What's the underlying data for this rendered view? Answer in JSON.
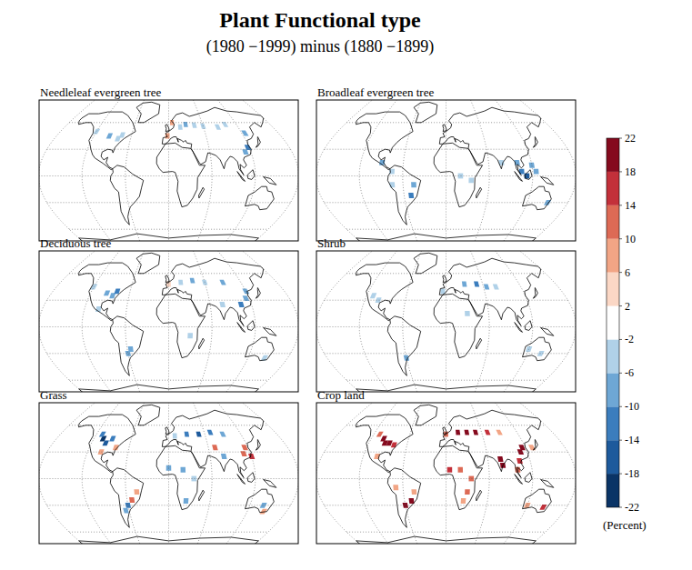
{
  "chart_data": {
    "type": "map",
    "title": "Plant Functional type",
    "subtitle": "(1980 −1999) minus (1880 −1899)",
    "colorbar": {
      "range": [
        -22,
        22
      ],
      "ticks": [
        -22,
        -18,
        -14,
        -10,
        -6,
        -2,
        2,
        6,
        10,
        14,
        18,
        22
      ],
      "colors": [
        "#0a3466",
        "#1d5a9c",
        "#3b7dbd",
        "#6ea7d5",
        "#b0d1e8",
        "#ffffff",
        "#fbd7c5",
        "#f2a585",
        "#dd6a55",
        "#c3303a",
        "#850a1e"
      ],
      "label": "(Percent)"
    },
    "panels": [
      {
        "title": "Needleleaf evergreen tree",
        "cells": [
          {
            "lon": -120,
            "lat": 50,
            "value": -6
          },
          {
            "lon": -95,
            "lat": 45,
            "value": -8
          },
          {
            "lon": -80,
            "lat": 42,
            "value": -6
          },
          {
            "lon": -75,
            "lat": 46,
            "value": -4
          },
          {
            "lon": 20,
            "lat": 55,
            "value": -6
          },
          {
            "lon": 30,
            "lat": 58,
            "value": -8
          },
          {
            "lon": 45,
            "lat": 57,
            "value": -6
          },
          {
            "lon": 60,
            "lat": 56,
            "value": -4
          },
          {
            "lon": 85,
            "lat": 55,
            "value": -6
          },
          {
            "lon": 125,
            "lat": 48,
            "value": -8
          },
          {
            "lon": 118,
            "lat": 32,
            "value": -12
          },
          {
            "lon": 112,
            "lat": 27,
            "value": -10
          },
          {
            "lon": 6,
            "lat": 60,
            "value": 8
          },
          {
            "lon": -2,
            "lat": 45,
            "value": 6
          },
          {
            "lon": 100,
            "lat": 58,
            "value": -4
          }
        ]
      },
      {
        "title": "Broadleaf evergreen tree",
        "cells": [
          {
            "lon": -90,
            "lat": 15,
            "value": -8
          },
          {
            "lon": -75,
            "lat": 5,
            "value": -6
          },
          {
            "lon": -45,
            "lat": -10,
            "value": -10
          },
          {
            "lon": -50,
            "lat": -22,
            "value": -12
          },
          {
            "lon": -75,
            "lat": -10,
            "value": -4
          },
          {
            "lon": 78,
            "lat": 15,
            "value": -6
          },
          {
            "lon": 100,
            "lat": 15,
            "value": -10
          },
          {
            "lon": 105,
            "lat": 5,
            "value": -14
          },
          {
            "lon": 112,
            "lat": 0,
            "value": -16
          },
          {
            "lon": 120,
            "lat": 12,
            "value": -10
          },
          {
            "lon": 125,
            "lat": 5,
            "value": -8
          },
          {
            "lon": 150,
            "lat": -30,
            "value": -10
          },
          {
            "lon": 20,
            "lat": 0,
            "value": -4
          },
          {
            "lon": 35,
            "lat": -5,
            "value": -6
          }
        ]
      },
      {
        "title": "Deciduous tree",
        "cells": [
          {
            "lon": -95,
            "lat": 38,
            "value": -10
          },
          {
            "lon": -85,
            "lat": 35,
            "value": -8
          },
          {
            "lon": -80,
            "lat": 40,
            "value": -12
          },
          {
            "lon": -100,
            "lat": 20,
            "value": -4
          },
          {
            "lon": -60,
            "lat": -30,
            "value": -10
          },
          {
            "lon": -55,
            "lat": -25,
            "value": -8
          },
          {
            "lon": 0,
            "lat": 48,
            "value": 4
          },
          {
            "lon": 20,
            "lat": 50,
            "value": -6
          },
          {
            "lon": 40,
            "lat": 52,
            "value": -8
          },
          {
            "lon": 60,
            "lat": 50,
            "value": -6
          },
          {
            "lon": 90,
            "lat": 50,
            "value": -8
          },
          {
            "lon": 115,
            "lat": 32,
            "value": -10
          },
          {
            "lon": 105,
            "lat": 25,
            "value": -12
          },
          {
            "lon": 120,
            "lat": 40,
            "value": -8
          },
          {
            "lon": 78,
            "lat": 25,
            "value": -6
          },
          {
            "lon": 30,
            "lat": -10,
            "value": -4
          },
          {
            "lon": 145,
            "lat": -35,
            "value": -6
          },
          {
            "lon": -120,
            "lat": 45,
            "value": -4
          }
        ]
      },
      {
        "title": "Shrub",
        "cells": [
          {
            "lon": -110,
            "lat": 35,
            "value": -6
          },
          {
            "lon": -100,
            "lat": 30,
            "value": -4
          },
          {
            "lon": -60,
            "lat": -35,
            "value": -8
          },
          {
            "lon": 30,
            "lat": 48,
            "value": -10
          },
          {
            "lon": 50,
            "lat": 48,
            "value": -12
          },
          {
            "lon": 65,
            "lat": 45,
            "value": -8
          },
          {
            "lon": 80,
            "lat": 45,
            "value": -6
          },
          {
            "lon": 30,
            "lat": 15,
            "value": -4
          },
          {
            "lon": 140,
            "lat": -30,
            "value": -6
          },
          {
            "lon": 120,
            "lat": -25,
            "value": -4
          },
          {
            "lon": -5,
            "lat": 40,
            "value": -6
          }
        ]
      },
      {
        "title": "Grass",
        "cells": [
          {
            "lon": -105,
            "lat": 45,
            "value": -20
          },
          {
            "lon": -98,
            "lat": 40,
            "value": -18
          },
          {
            "lon": -110,
            "lat": 50,
            "value": -14
          },
          {
            "lon": -90,
            "lat": 45,
            "value": -12
          },
          {
            "lon": -100,
            "lat": 30,
            "value": 8
          },
          {
            "lon": -80,
            "lat": 35,
            "value": 6
          },
          {
            "lon": -60,
            "lat": -30,
            "value": -14
          },
          {
            "lon": -53,
            "lat": -24,
            "value": 10
          },
          {
            "lon": -65,
            "lat": -36,
            "value": -10
          },
          {
            "lon": -45,
            "lat": -15,
            "value": 6
          },
          {
            "lon": 10,
            "lat": 48,
            "value": -6
          },
          {
            "lon": 30,
            "lat": 50,
            "value": -12
          },
          {
            "lon": 50,
            "lat": 50,
            "value": -16
          },
          {
            "lon": 70,
            "lat": 52,
            "value": -14
          },
          {
            "lon": 90,
            "lat": 50,
            "value": -10
          },
          {
            "lon": 80,
            "lat": 25,
            "value": -10
          },
          {
            "lon": 115,
            "lat": 35,
            "value": 12
          },
          {
            "lon": 110,
            "lat": 28,
            "value": 10
          },
          {
            "lon": 120,
            "lat": 25,
            "value": 14
          },
          {
            "lon": 0,
            "lat": 12,
            "value": -8
          },
          {
            "lon": 20,
            "lat": 10,
            "value": -10
          },
          {
            "lon": 35,
            "lat": 0,
            "value": -6
          },
          {
            "lon": 25,
            "lat": -25,
            "value": -8
          },
          {
            "lon": 140,
            "lat": -30,
            "value": -10
          },
          {
            "lon": 145,
            "lat": -37,
            "value": 8
          },
          {
            "lon": 70,
            "lat": 35,
            "value": 10
          }
        ]
      },
      {
        "title": "Crop land",
        "cells": [
          {
            "lon": -100,
            "lat": 45,
            "value": 20
          },
          {
            "lon": -95,
            "lat": 40,
            "value": 22
          },
          {
            "lon": -88,
            "lat": 40,
            "value": 18
          },
          {
            "lon": -80,
            "lat": 38,
            "value": 14
          },
          {
            "lon": -110,
            "lat": 50,
            "value": 10
          },
          {
            "lon": -100,
            "lat": 25,
            "value": 8
          },
          {
            "lon": -60,
            "lat": -30,
            "value": 18
          },
          {
            "lon": -50,
            "lat": -25,
            "value": 20
          },
          {
            "lon": -45,
            "lat": -15,
            "value": 8
          },
          {
            "lon": -70,
            "lat": -10,
            "value": 6
          },
          {
            "lon": 0,
            "lat": 50,
            "value": 10
          },
          {
            "lon": 20,
            "lat": 52,
            "value": 18
          },
          {
            "lon": 35,
            "lat": 52,
            "value": 22
          },
          {
            "lon": 50,
            "lat": 52,
            "value": 18
          },
          {
            "lon": 70,
            "lat": 52,
            "value": 14
          },
          {
            "lon": 90,
            "lat": 52,
            "value": 6
          },
          {
            "lon": 78,
            "lat": 22,
            "value": 22
          },
          {
            "lon": 80,
            "lat": 15,
            "value": 18
          },
          {
            "lon": 110,
            "lat": 30,
            "value": 20
          },
          {
            "lon": 115,
            "lat": 35,
            "value": 18
          },
          {
            "lon": 105,
            "lat": 20,
            "value": 14
          },
          {
            "lon": 100,
            "lat": 10,
            "value": 12
          },
          {
            "lon": 5,
            "lat": 10,
            "value": 14
          },
          {
            "lon": 20,
            "lat": 10,
            "value": 10
          },
          {
            "lon": 35,
            "lat": 0,
            "value": 12
          },
          {
            "lon": 25,
            "lat": -25,
            "value": 8
          },
          {
            "lon": 30,
            "lat": -15,
            "value": 10
          },
          {
            "lon": 145,
            "lat": -32,
            "value": 14
          },
          {
            "lon": 120,
            "lat": -30,
            "value": 8
          },
          {
            "lon": 130,
            "lat": 35,
            "value": 8
          }
        ]
      }
    ]
  }
}
